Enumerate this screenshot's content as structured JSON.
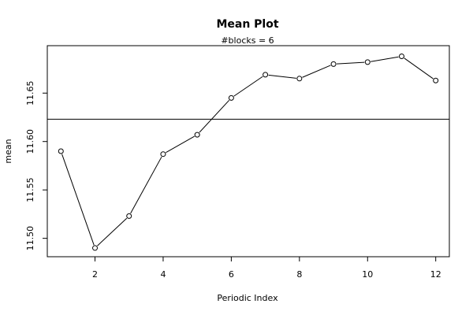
{
  "chart_data": {
    "type": "line",
    "title": "Mean Plot",
    "subtitle": "#blocks =  6",
    "xlabel": "Periodic Index",
    "ylabel": "mean",
    "xlim": [
      0.6,
      12.4
    ],
    "ylim": [
      11.481,
      11.699
    ],
    "xticks": [
      2,
      4,
      6,
      8,
      10,
      12
    ],
    "xtick_labels": [
      "2",
      "4",
      "6",
      "8",
      "10",
      "12"
    ],
    "yticks": [
      11.5,
      11.55,
      11.6,
      11.65
    ],
    "ytick_labels": [
      "11.50",
      "11.55",
      "11.60",
      "11.65"
    ],
    "reference_line": 11.623,
    "grid": false,
    "x": [
      1,
      2,
      3,
      4,
      5,
      6,
      7,
      8,
      9,
      10,
      11,
      12
    ],
    "values": [
      11.59,
      11.49,
      11.523,
      11.587,
      11.607,
      11.645,
      11.669,
      11.665,
      11.68,
      11.682,
      11.688,
      11.663
    ]
  }
}
